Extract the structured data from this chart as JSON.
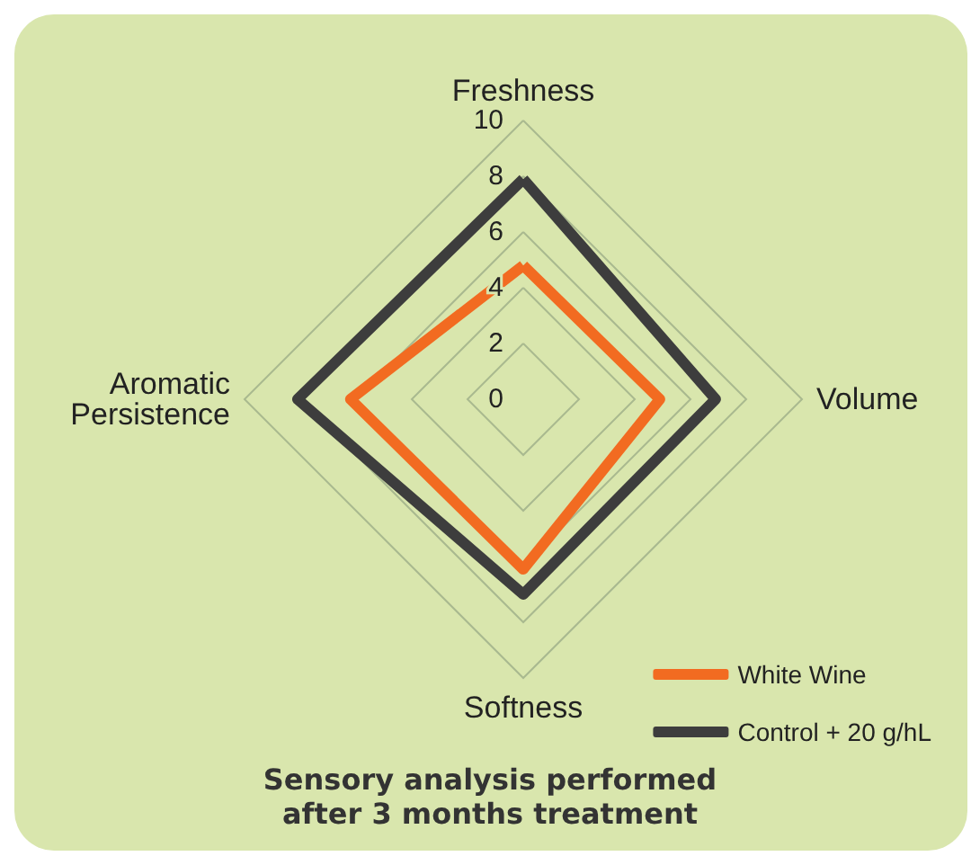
{
  "chart_data": {
    "type": "radar",
    "title": "Sensory analysis performed\nafter 3 months treatment",
    "categories": [
      "Freshness",
      "Volume",
      "Softness",
      "Aromatic\nPersistence"
    ],
    "series": [
      {
        "name": "White Wine",
        "color": "#f26b21",
        "values": [
          4.8,
          4.9,
          6.1,
          6.2
        ]
      },
      {
        "name": "Control + 20 g/hL",
        "color": "#3d3d3d",
        "values": [
          7.9,
          6.9,
          7.0,
          8.1
        ]
      }
    ],
    "ylim": [
      0,
      10
    ],
    "yticks": [
      0,
      2,
      4,
      6,
      8,
      10
    ],
    "grid": true,
    "legend": "bottom right",
    "marker": "none"
  }
}
